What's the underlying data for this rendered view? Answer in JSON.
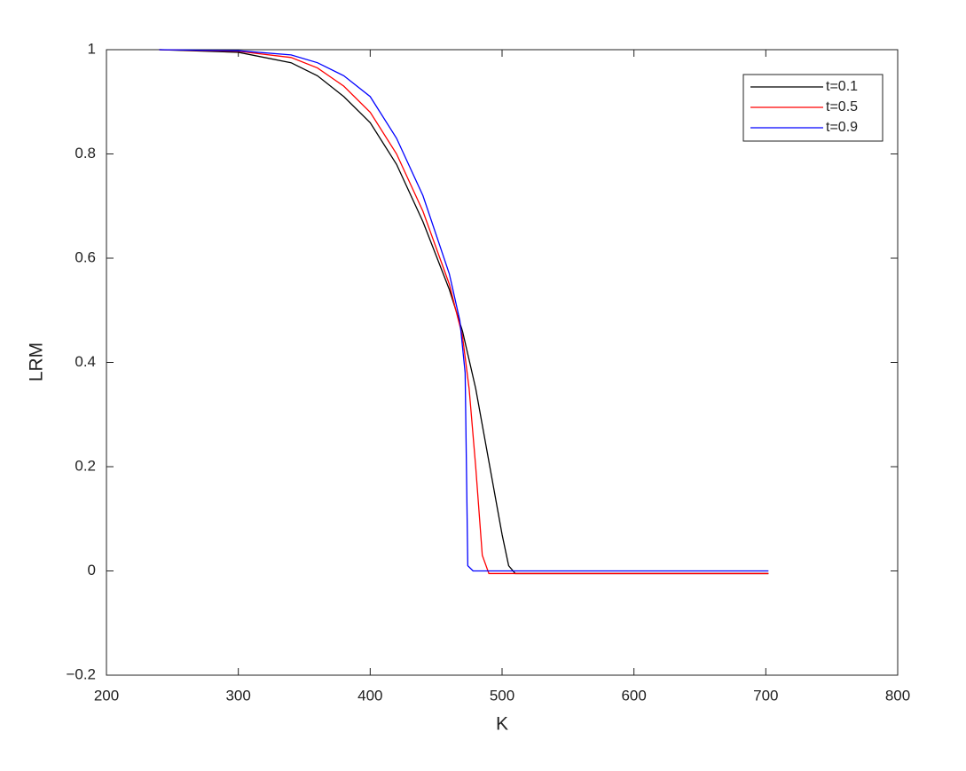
{
  "chart_data": {
    "type": "line",
    "xlabel": "K",
    "ylabel": "LRM",
    "xlim": [
      200,
      800
    ],
    "ylim": [
      -0.2,
      1
    ],
    "xticks": [
      200,
      300,
      400,
      500,
      600,
      700,
      800
    ],
    "yticks": [
      {
        "value": -0.2,
        "label": "−0.2"
      },
      0,
      0.2,
      0.4,
      0.6,
      0.8,
      1
    ],
    "grid": false,
    "legend": "upper right",
    "series": [
      {
        "name": "t=0.1",
        "color": "#000000",
        "x": [
          240,
          300,
          340,
          360,
          380,
          400,
          420,
          440,
          460,
          470,
          480,
          490,
          500,
          505,
          510,
          702
        ],
        "values": [
          1,
          0.995,
          0.975,
          0.95,
          0.91,
          0.86,
          0.78,
          0.67,
          0.54,
          0.46,
          0.35,
          0.21,
          0.07,
          0.01,
          -0.005,
          -0.005
        ]
      },
      {
        "name": "t=0.5",
        "color": "#ff0000",
        "x": [
          240,
          300,
          340,
          360,
          380,
          400,
          420,
          440,
          460,
          470,
          475,
          480,
          485,
          490,
          702
        ],
        "values": [
          1,
          0.997,
          0.985,
          0.965,
          0.93,
          0.88,
          0.8,
          0.69,
          0.55,
          0.45,
          0.35,
          0.2,
          0.03,
          -0.005,
          -0.005
        ]
      },
      {
        "name": "t=0.9",
        "color": "#0000ff",
        "x": [
          240,
          300,
          340,
          360,
          380,
          400,
          420,
          440,
          460,
          468,
          472,
          474,
          478,
          702
        ],
        "values": [
          1,
          0.998,
          0.99,
          0.975,
          0.95,
          0.91,
          0.83,
          0.72,
          0.57,
          0.48,
          0.38,
          0.01,
          0,
          0
        ]
      }
    ]
  }
}
